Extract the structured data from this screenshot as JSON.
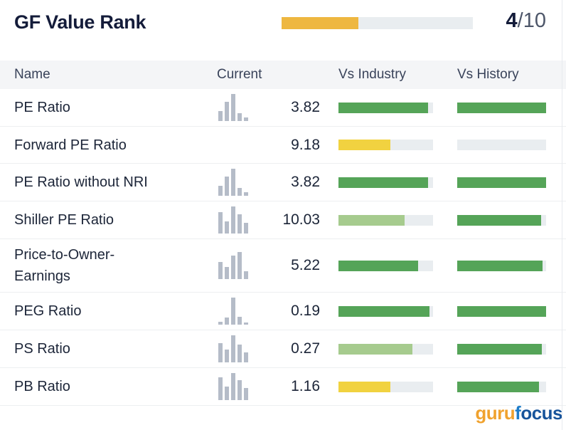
{
  "header": {
    "title": "GF Value Rank",
    "score_value": "4",
    "score_max": "/10",
    "progress": {
      "pct": 40,
      "color": "amber"
    }
  },
  "columns": {
    "name": "Name",
    "current": "Current",
    "vs_industry": "Vs Industry",
    "vs_history": "Vs History"
  },
  "colors": {
    "green": "#55a458",
    "light_green": "#a6cb8e",
    "yellow": "#f1d240",
    "amber": "#eeb740",
    "track": "#e9edf0",
    "icon_gray": "#b5bcc8"
  },
  "icons": {
    "pe": [
      36,
      72,
      100,
      28,
      12
    ],
    "shiller": [
      80,
      45,
      100,
      72,
      40
    ],
    "p2oe": [
      62,
      46,
      88,
      100,
      30
    ],
    "peg": [
      10,
      26,
      100,
      30,
      8
    ],
    "ps": [
      72,
      48,
      100,
      66,
      38
    ],
    "pb": [
      84,
      50,
      100,
      74,
      44
    ]
  },
  "table": {
    "rows": [
      {
        "name": "PE Ratio",
        "value": "3.82",
        "icon": "pe",
        "vs_industry": {
          "pct": 95,
          "color": "green"
        },
        "vs_history": {
          "pct": 100,
          "color": "green"
        }
      },
      {
        "name": "Forward PE Ratio",
        "value": "9.18",
        "icon": null,
        "vs_industry": {
          "pct": 55,
          "color": "yellow"
        },
        "vs_history": {
          "pct": 0,
          "color": "green"
        }
      },
      {
        "name": "PE Ratio without NRI",
        "value": "3.82",
        "icon": "pe",
        "vs_industry": {
          "pct": 95,
          "color": "green"
        },
        "vs_history": {
          "pct": 100,
          "color": "green"
        }
      },
      {
        "name": "Shiller PE Ratio",
        "value": "10.03",
        "icon": "shiller",
        "vs_industry": {
          "pct": 70,
          "color": "light_green"
        },
        "vs_history": {
          "pct": 94,
          "color": "green"
        }
      },
      {
        "name": "Price-to-Owner-Earnings",
        "value": "5.22",
        "icon": "p2oe",
        "vs_industry": {
          "pct": 84,
          "color": "green"
        },
        "vs_history": {
          "pct": 96,
          "color": "green"
        }
      },
      {
        "name": "PEG Ratio",
        "value": "0.19",
        "icon": "peg",
        "vs_industry": {
          "pct": 96,
          "color": "green"
        },
        "vs_history": {
          "pct": 100,
          "color": "green"
        }
      },
      {
        "name": "PS Ratio",
        "value": "0.27",
        "icon": "ps",
        "vs_industry": {
          "pct": 78,
          "color": "light_green"
        },
        "vs_history": {
          "pct": 95,
          "color": "green"
        }
      },
      {
        "name": "PB Ratio",
        "value": "1.16",
        "icon": "pb",
        "vs_industry": {
          "pct": 55,
          "color": "yellow"
        },
        "vs_history": {
          "pct": 92,
          "color": "green"
        }
      }
    ]
  },
  "logo": {
    "part1": "guru",
    "part2": "f",
    "part3": "ocus"
  }
}
